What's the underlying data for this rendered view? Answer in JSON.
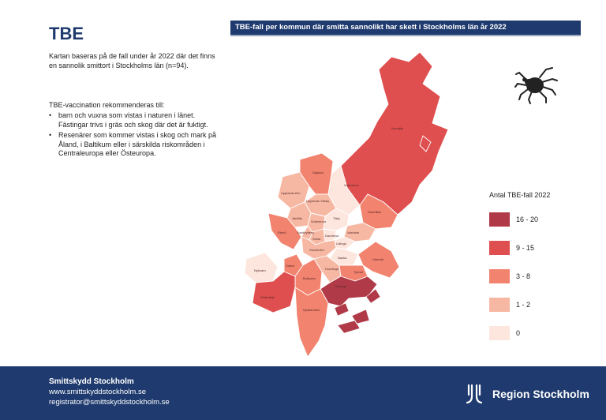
{
  "page": {
    "title": "TBE",
    "intro": "Kartan baseras på de fall under år 2022 där det finns en sannolik smittort i Stockholms län (n=94).",
    "recommendation_title": "TBE-vaccination rekommenderas till:",
    "recommendations": [
      "barn och vuxna som vistas i naturen i länet. Fästingar trivs i gräs och skog där det är fuktigt.",
      "Resenärer som kommer vistas i skog och mark på Åland, i Baltikum eller i särskilda riskområden i Centraleuropa eller Östeuropa."
    ]
  },
  "map": {
    "title": "TBE-fall per kommun där smitta sannolikt har skett i Stockholms län år 2022",
    "legend_title": "Antal TBE-fall 2022",
    "legend": [
      {
        "label": "16 - 20",
        "color": "#b03a48"
      },
      {
        "label": "9 - 15",
        "color": "#e04f4f"
      },
      {
        "label": "3 - 8",
        "color": "#f2836e"
      },
      {
        "label": "1 - 2",
        "color": "#f7b8a3"
      },
      {
        "label": "0",
        "color": "#fde6dd"
      }
    ],
    "municipalities": [
      {
        "name": "Norrtälje",
        "class": "9 - 15"
      },
      {
        "name": "Norrtälje",
        "class": "9 - 15"
      },
      {
        "name": "Vallentuna",
        "class": "0"
      },
      {
        "name": "Österåker",
        "class": "3 - 8"
      },
      {
        "name": "Upplands-Bro",
        "class": "1 - 2"
      },
      {
        "name": "Upplands Väsby",
        "class": "1 - 2"
      },
      {
        "name": "Sigtuna",
        "class": "3 - 8"
      },
      {
        "name": "Järfälla",
        "class": "1 - 2"
      },
      {
        "name": "Sollentuna",
        "class": "1 - 2"
      },
      {
        "name": "Täby",
        "class": "0"
      },
      {
        "name": "Danderyd",
        "class": "0"
      },
      {
        "name": "Vaxholm",
        "class": "1 - 2"
      },
      {
        "name": "Sundbyberg",
        "class": "1 - 2"
      },
      {
        "name": "Solna",
        "class": "1 - 2"
      },
      {
        "name": "Lidingö",
        "class": "0"
      },
      {
        "name": "Ekerö",
        "class": "3 - 8"
      },
      {
        "name": "Stockholm",
        "class": "1 - 2"
      },
      {
        "name": "Nacka",
        "class": "0"
      },
      {
        "name": "Värmdö",
        "class": "3 - 8"
      },
      {
        "name": "Salem",
        "class": "3 - 8"
      },
      {
        "name": "Botkyrka",
        "class": "3 - 8"
      },
      {
        "name": "Huddinge",
        "class": "1 - 2"
      },
      {
        "name": "Tyresö",
        "class": "3 - 8"
      },
      {
        "name": "Haninge",
        "class": "16 - 20"
      },
      {
        "name": "Nykvarn",
        "class": "0"
      },
      {
        "name": "Södertälje",
        "class": "9 - 15"
      },
      {
        "name": "Nynäshamn",
        "class": "3 - 8"
      }
    ]
  },
  "footer": {
    "org": "Smittskydd Stockholm",
    "web": "www.smittskyddstockholm.se",
    "email": "registrator@smittskyddstockholm.se",
    "region": "Region Stockholm"
  }
}
